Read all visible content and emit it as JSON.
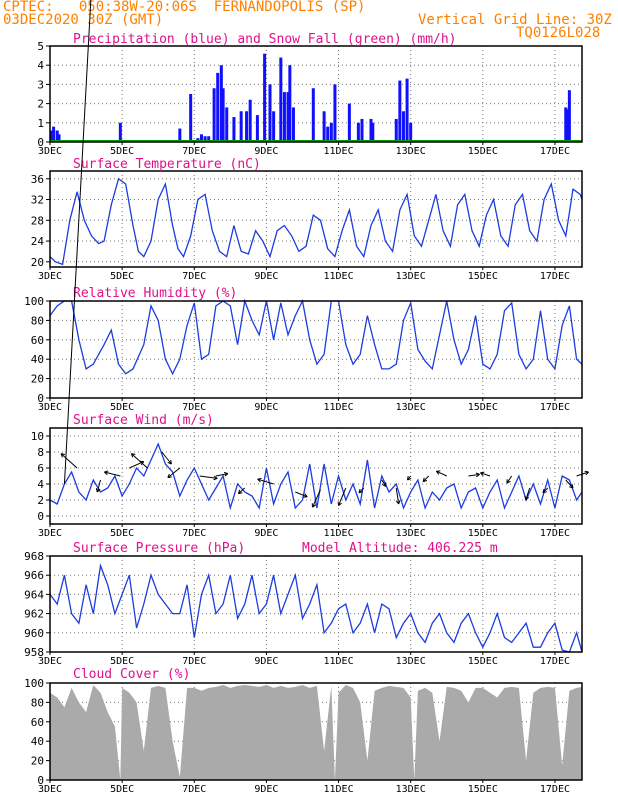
{
  "header": {
    "line1": "CPTEC:   050:38W-20:06S  FERNANDOPOLIS (SP)",
    "line2": "03DEC2020 30Z (GMT)",
    "vgrid": "Vertical Grid Line: 30Z",
    "code": "TQ0126L028"
  },
  "colors": {
    "header": "#ff8000",
    "title": "#e0108c",
    "precip": "#1010ff",
    "snow": "#00a000",
    "line": "#1c3ce0",
    "cloud": "#aaaaaa",
    "wind_arrow": "#000000"
  },
  "x_ticks": [
    "3DEC",
    "5DEC",
    "7DEC",
    "9DEC",
    "11DEC",
    "13DEC",
    "15DEC",
    "17DEC"
  ],
  "x_tick_days": [
    3,
    5,
    7,
    9,
    11,
    13,
    15,
    17
  ],
  "x_range_days": [
    3,
    17.75
  ],
  "chart_data": [
    {
      "id": "precip",
      "type": "bar",
      "title": "Precipitation (blue) and Snow Fall (green) (mm/h)",
      "ylim": [
        0,
        5
      ],
      "yticks": [
        0,
        1,
        2,
        3,
        4,
        5
      ],
      "grid": true,
      "x": [
        3.05,
        3.1,
        3.2,
        3.25,
        4.95,
        6.6,
        6.9,
        7.1,
        7.2,
        7.3,
        7.4,
        7.55,
        7.65,
        7.75,
        7.8,
        7.9,
        8.1,
        8.3,
        8.45,
        8.55,
        8.75,
        8.95,
        9.1,
        9.2,
        9.4,
        9.5,
        9.6,
        9.65,
        9.75,
        10.3,
        10.6,
        10.7,
        10.8,
        10.9,
        11.3,
        11.55,
        11.65,
        11.9,
        11.95,
        12.6,
        12.7,
        12.8,
        12.9,
        13.0,
        17.3,
        17.35,
        17.4
      ],
      "values": [
        0.6,
        0.8,
        0.6,
        0.4,
        1.0,
        0.7,
        2.5,
        0.2,
        0.4,
        0.3,
        0.3,
        2.8,
        3.6,
        4.0,
        2.8,
        1.8,
        1.3,
        1.6,
        1.6,
        2.2,
        1.4,
        4.6,
        3.0,
        1.6,
        4.4,
        2.6,
        2.6,
        4.0,
        1.8,
        2.8,
        1.6,
        0.8,
        1.0,
        3.0,
        2.0,
        1.0,
        1.2,
        1.2,
        1.0,
        1.2,
        3.2,
        1.6,
        3.3,
        1.0,
        1.8,
        1.7,
        2.7
      ]
    },
    {
      "id": "temp",
      "type": "line",
      "title": "Surface Temperature (nC)",
      "ylim": [
        19,
        37.5
      ],
      "yticks": [
        20,
        24,
        28,
        32,
        36
      ],
      "grid": true,
      "x": [
        3.0,
        3.15,
        3.35,
        3.55,
        3.75,
        3.95,
        4.15,
        4.35,
        4.5,
        4.7,
        4.9,
        5.1,
        5.3,
        5.45,
        5.6,
        5.8,
        6.0,
        6.2,
        6.4,
        6.55,
        6.7,
        6.9,
        7.1,
        7.3,
        7.5,
        7.7,
        7.9,
        8.1,
        8.3,
        8.5,
        8.7,
        8.9,
        9.1,
        9.3,
        9.5,
        9.7,
        9.9,
        10.1,
        10.3,
        10.5,
        10.7,
        10.9,
        11.1,
        11.3,
        11.5,
        11.7,
        11.9,
        12.1,
        12.3,
        12.5,
        12.7,
        12.9,
        13.1,
        13.3,
        13.5,
        13.7,
        13.9,
        14.1,
        14.3,
        14.5,
        14.7,
        14.9,
        15.1,
        15.3,
        15.5,
        15.7,
        15.9,
        16.1,
        16.3,
        16.5,
        16.7,
        16.9,
        17.1,
        17.3,
        17.5,
        17.7,
        17.75
      ],
      "values": [
        21,
        20,
        19.5,
        28,
        33.5,
        28,
        25,
        23.5,
        24,
        31,
        36,
        35,
        27,
        22,
        21,
        24,
        32,
        35,
        27,
        22.5,
        21,
        25,
        32,
        33,
        26,
        22,
        21,
        27,
        22,
        21.5,
        26,
        24,
        21,
        26,
        27,
        25,
        22,
        23,
        29,
        28,
        22.5,
        21,
        26,
        30,
        23,
        21,
        27,
        30,
        24,
        22,
        30,
        33,
        25,
        23,
        28,
        33,
        26,
        23,
        31,
        33,
        26,
        23,
        29,
        32,
        25,
        23,
        31,
        33,
        26,
        24,
        32,
        35,
        28,
        25,
        34,
        33,
        32
      ]
    },
    {
      "id": "rh",
      "type": "line",
      "title": "Relative Humidity (%)",
      "ylim": [
        0,
        100
      ],
      "yticks": [
        0,
        20,
        40,
        60,
        80,
        100
      ],
      "grid": true,
      "x": [
        3.0,
        3.2,
        3.4,
        3.6,
        3.8,
        4.0,
        4.2,
        4.5,
        4.7,
        4.9,
        5.1,
        5.3,
        5.6,
        5.8,
        6.0,
        6.2,
        6.4,
        6.6,
        6.8,
        7.0,
        7.2,
        7.4,
        7.6,
        7.8,
        8.0,
        8.2,
        8.4,
        8.6,
        8.8,
        9.0,
        9.2,
        9.4,
        9.6,
        9.8,
        10.0,
        10.2,
        10.4,
        10.6,
        10.8,
        11.0,
        11.2,
        11.4,
        11.6,
        11.8,
        12.0,
        12.2,
        12.4,
        12.6,
        12.8,
        13.0,
        13.2,
        13.4,
        13.6,
        13.8,
        14.0,
        14.2,
        14.4,
        14.6,
        14.8,
        15.0,
        15.2,
        15.4,
        15.6,
        15.8,
        16.0,
        16.2,
        16.4,
        16.6,
        16.8,
        17.0,
        17.2,
        17.4,
        17.6,
        17.75
      ],
      "values": [
        85,
        95,
        100,
        100,
        60,
        30,
        35,
        55,
        70,
        35,
        25,
        30,
        55,
        95,
        80,
        40,
        25,
        40,
        75,
        98,
        40,
        45,
        95,
        100,
        95,
        55,
        100,
        80,
        65,
        100,
        60,
        98,
        65,
        85,
        100,
        60,
        35,
        45,
        100,
        100,
        55,
        35,
        45,
        85,
        55,
        30,
        30,
        35,
        80,
        98,
        50,
        38,
        30,
        65,
        100,
        60,
        35,
        50,
        85,
        35,
        30,
        45,
        90,
        98,
        45,
        30,
        40,
        90,
        40,
        30,
        75,
        95,
        40,
        35
      ]
    },
    {
      "id": "wind",
      "type": "line",
      "title": "Surface Wind (m/s)",
      "ylim": [
        -1,
        11
      ],
      "yticks": [
        0,
        2,
        4,
        6,
        8,
        10
      ],
      "grid": true,
      "x": [
        3.0,
        3.2,
        3.4,
        3.6,
        3.8,
        4.0,
        4.2,
        4.4,
        4.6,
        4.8,
        5.0,
        5.2,
        5.4,
        5.6,
        5.8,
        6.0,
        6.2,
        6.4,
        6.6,
        6.8,
        7.0,
        7.2,
        7.4,
        7.6,
        7.8,
        8.0,
        8.2,
        8.4,
        8.6,
        8.8,
        9.0,
        9.2,
        9.4,
        9.6,
        9.8,
        10.0,
        10.2,
        10.4,
        10.6,
        10.8,
        11.0,
        11.2,
        11.4,
        11.6,
        11.8,
        12.0,
        12.2,
        12.4,
        12.6,
        12.8,
        13.0,
        13.2,
        13.4,
        13.6,
        13.8,
        14.0,
        14.2,
        14.4,
        14.6,
        14.8,
        15.0,
        15.2,
        15.4,
        15.6,
        15.8,
        16.0,
        16.2,
        16.4,
        16.6,
        16.8,
        17.0,
        17.2,
        17.4,
        17.6,
        17.75
      ],
      "values": [
        2,
        1.5,
        4,
        5.5,
        3,
        2,
        4.5,
        3,
        3.5,
        5,
        2.5,
        4,
        6,
        5,
        7,
        9,
        6.5,
        5.5,
        2.5,
        4.5,
        6,
        4,
        2,
        3.5,
        5,
        1,
        4,
        3,
        2.5,
        1,
        6,
        1.5,
        4,
        5.5,
        1,
        2,
        6.5,
        1,
        6.5,
        1.5,
        5,
        2,
        4,
        1.5,
        7,
        1,
        5,
        3,
        4,
        1,
        3,
        4.5,
        1,
        3,
        2,
        3.5,
        4,
        1,
        3,
        3.5,
        1,
        3,
        4.5,
        1,
        3,
        5,
        2,
        4,
        1.5,
        4.5,
        1,
        5,
        4.5,
        2,
        3
      ],
      "arrows": [
        [
          3.4,
          4,
          3.3
        ],
        [
          3.75,
          6,
          -2,
          1.8
        ],
        [
          4.4,
          4.5,
          -0.4,
          -1.5
        ],
        [
          4.95,
          5,
          -2,
          0.5
        ],
        [
          5.2,
          6,
          1.8,
          0.8
        ],
        [
          5.7,
          6,
          -2,
          1.8
        ],
        [
          6.1,
          8,
          1.2,
          -1.5
        ],
        [
          6.6,
          6,
          -1.5,
          -1.2
        ],
        [
          7.15,
          5,
          2.2,
          -0.3
        ],
        [
          7.6,
          5,
          1.5,
          0.3
        ],
        [
          8.4,
          3.5,
          -0.8,
          -0.7
        ],
        [
          9.2,
          4,
          -2,
          0.6
        ],
        [
          9.8,
          3,
          1.5,
          -0.6
        ],
        [
          10.5,
          3.3,
          -1,
          -2.2
        ],
        [
          11.2,
          3.5,
          -0.9,
          -2.2
        ],
        [
          11.7,
          3.5,
          -0.6,
          -0.6
        ],
        [
          12.2,
          4.5,
          0.5,
          -0.8
        ],
        [
          12.6,
          3.5,
          0.3,
          -2
        ],
        [
          13.0,
          5,
          -0.4,
          -0.5
        ],
        [
          13.5,
          5,
          -0.7,
          -0.7
        ],
        [
          14.0,
          5,
          -1.3,
          0.6
        ],
        [
          14.6,
          5,
          1.4,
          0.2
        ],
        [
          15.2,
          5,
          -1.2,
          0.4
        ],
        [
          15.8,
          5,
          -0.6,
          -0.9
        ],
        [
          16.3,
          3.5,
          -0.5,
          -1.5
        ],
        [
          16.8,
          3.5,
          -0.6,
          -0.6
        ],
        [
          17.3,
          4.5,
          0.9,
          -1
        ],
        [
          17.6,
          5,
          1.5,
          0.5
        ]
      ]
    },
    {
      "id": "pres",
      "type": "line",
      "title": "Surface Pressure (hPa)",
      "annotation": "Model Altitude: 406.225 m",
      "ylim": [
        958,
        968
      ],
      "yticks": [
        958,
        960,
        962,
        964,
        966,
        968
      ],
      "grid": true,
      "x": [
        3.0,
        3.2,
        3.4,
        3.6,
        3.8,
        4.0,
        4.2,
        4.4,
        4.6,
        4.8,
        5.0,
        5.2,
        5.4,
        5.6,
        5.8,
        6.0,
        6.2,
        6.4,
        6.6,
        6.8,
        7.0,
        7.2,
        7.4,
        7.6,
        7.8,
        8.0,
        8.2,
        8.4,
        8.6,
        8.8,
        9.0,
        9.2,
        9.4,
        9.6,
        9.8,
        10.0,
        10.2,
        10.4,
        10.6,
        10.8,
        11.0,
        11.2,
        11.4,
        11.6,
        11.8,
        12.0,
        12.2,
        12.4,
        12.6,
        12.8,
        13.0,
        13.2,
        13.4,
        13.6,
        13.8,
        14.0,
        14.2,
        14.4,
        14.6,
        14.8,
        15.0,
        15.2,
        15.4,
        15.6,
        15.8,
        16.0,
        16.2,
        16.4,
        16.6,
        16.8,
        17.0,
        17.2,
        17.4,
        17.6,
        17.75
      ],
      "values": [
        964,
        963,
        966,
        962,
        961,
        965,
        962,
        967,
        965,
        962,
        964,
        966,
        960.5,
        963,
        966,
        964,
        963,
        962,
        962,
        965,
        959.5,
        964,
        966,
        962,
        963,
        966,
        961.5,
        963,
        966,
        962,
        963,
        966,
        962,
        964,
        966,
        961.5,
        963,
        965,
        960,
        961,
        962.5,
        963,
        960,
        961,
        963,
        960,
        963,
        962.5,
        959.5,
        961,
        962,
        960,
        959,
        961,
        962,
        960,
        959,
        961,
        962,
        960,
        958.5,
        960,
        962,
        959.5,
        959,
        960,
        961,
        958.5,
        958.5,
        960,
        961,
        958.2,
        958,
        960,
        957.5
      ]
    },
    {
      "id": "cloud",
      "type": "area",
      "title": "Cloud Cover (%)",
      "ylim": [
        0,
        100
      ],
      "yticks": [
        0,
        20,
        40,
        60,
        80,
        100
      ],
      "grid": true,
      "x": [
        3.0,
        3.2,
        3.4,
        3.6,
        3.8,
        4.0,
        4.2,
        4.4,
        4.6,
        4.8,
        4.95,
        5.0,
        5.2,
        5.4,
        5.6,
        5.8,
        6.0,
        6.2,
        6.4,
        6.6,
        6.8,
        7.0,
        7.2,
        7.4,
        7.6,
        7.8,
        8.0,
        8.2,
        8.4,
        8.6,
        8.8,
        9.0,
        9.2,
        9.4,
        9.6,
        9.8,
        10.0,
        10.2,
        10.4,
        10.6,
        10.8,
        10.9,
        11.0,
        11.2,
        11.4,
        11.6,
        11.8,
        12.0,
        12.2,
        12.4,
        12.6,
        12.8,
        13.0,
        13.1,
        13.2,
        13.4,
        13.6,
        13.8,
        14.0,
        14.2,
        14.4,
        14.6,
        14.8,
        15.0,
        15.2,
        15.4,
        15.6,
        15.8,
        16.0,
        16.2,
        16.4,
        16.6,
        16.8,
        17.0,
        17.2,
        17.4,
        17.6,
        17.75
      ],
      "values": [
        90,
        85,
        75,
        95,
        80,
        70,
        98,
        90,
        70,
        55,
        0,
        95,
        90,
        80,
        30,
        95,
        97,
        95,
        40,
        3,
        95,
        95,
        92,
        95,
        96,
        98,
        95,
        97,
        98,
        97,
        96,
        98,
        95,
        97,
        95,
        96,
        98,
        95,
        97,
        30,
        97,
        0,
        90,
        98,
        95,
        80,
        20,
        92,
        95,
        97,
        96,
        95,
        85,
        0,
        92,
        95,
        90,
        40,
        96,
        95,
        92,
        80,
        95,
        95,
        90,
        85,
        95,
        96,
        95,
        20,
        90,
        95,
        96,
        95,
        15,
        92,
        95,
        96
      ]
    }
  ]
}
